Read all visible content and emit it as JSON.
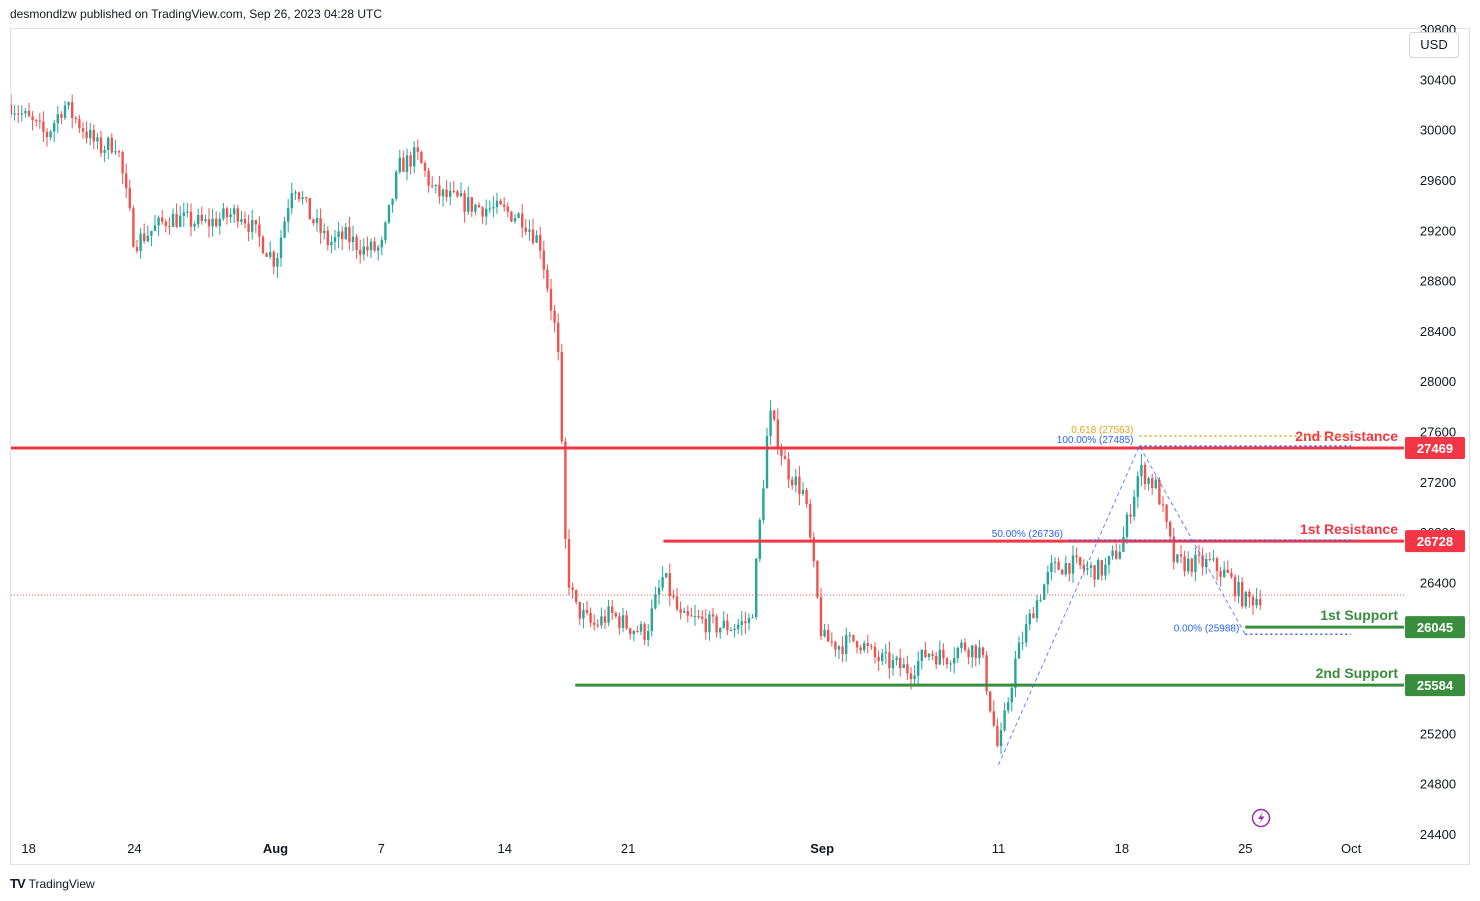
{
  "header": {
    "published": "desmondlzw published on TradingView.com, Sep 26, 2023 04:28 UTC"
  },
  "currency_button": "USD",
  "footer": {
    "brand": "TradingView",
    "logo": "tradingview-logo-icon"
  },
  "colors": {
    "up": "#26a69a",
    "down": "#ef5350",
    "resistance": "#f23645",
    "support": "#388e3c",
    "fib_blue": "#2962ff",
    "fib_gold": "#e6a21c",
    "axis_text": "#131722"
  },
  "chart_data": {
    "type": "candlestick",
    "y_axis_ticks": [
      24400,
      24800,
      25200,
      25600,
      26000,
      26400,
      26800,
      27200,
      27600,
      28000,
      28400,
      28800,
      29200,
      29600,
      30000,
      30400,
      30800
    ],
    "ylim": [
      24400,
      30800
    ],
    "x_axis_ticks": [
      {
        "label": "18",
        "date": "2023-07-18"
      },
      {
        "label": "24",
        "date": "2023-07-24"
      },
      {
        "label": "Aug",
        "date": "2023-08-01"
      },
      {
        "label": "7",
        "date": "2023-08-07"
      },
      {
        "label": "14",
        "date": "2023-08-14"
      },
      {
        "label": "21",
        "date": "2023-08-21"
      },
      {
        "label": "Sep",
        "date": "2023-09-01"
      },
      {
        "label": "11",
        "date": "2023-09-11"
      },
      {
        "label": "18",
        "date": "2023-09-18"
      },
      {
        "label": "25",
        "date": "2023-09-25"
      },
      {
        "label": "Oct",
        "date": "2023-10-01"
      }
    ],
    "xlim": [
      "2023-07-17",
      "2023-10-04"
    ],
    "price_path": [
      {
        "date": "2023-07-17",
        "price": 30200
      },
      {
        "date": "2023-07-19",
        "price": 29950
      },
      {
        "date": "2023-07-20",
        "price": 30200
      },
      {
        "date": "2023-07-22",
        "price": 29850
      },
      {
        "date": "2023-07-23",
        "price": 29900
      },
      {
        "date": "2023-07-24",
        "price": 29100
      },
      {
        "date": "2023-07-26",
        "price": 29300
      },
      {
        "date": "2023-07-28",
        "price": 29250
      },
      {
        "date": "2023-07-30",
        "price": 29350
      },
      {
        "date": "2023-07-31",
        "price": 29150
      },
      {
        "date": "2023-08-01",
        "price": 28950
      },
      {
        "date": "2023-08-02",
        "price": 29600
      },
      {
        "date": "2023-08-03",
        "price": 29300
      },
      {
        "date": "2023-08-04",
        "price": 29100
      },
      {
        "date": "2023-08-05",
        "price": 29150
      },
      {
        "date": "2023-08-06",
        "price": 29050
      },
      {
        "date": "2023-08-07",
        "price": 29050
      },
      {
        "date": "2023-08-08",
        "price": 29700
      },
      {
        "date": "2023-08-09",
        "price": 29800
      },
      {
        "date": "2023-08-10",
        "price": 29500
      },
      {
        "date": "2023-08-12",
        "price": 29400
      },
      {
        "date": "2023-08-14",
        "price": 29350
      },
      {
        "date": "2023-08-15",
        "price": 29300
      },
      {
        "date": "2023-08-16",
        "price": 29100
      },
      {
        "date": "2023-08-17",
        "price": 28300
      },
      {
        "date": "2023-08-17T12:00",
        "price": 26500
      },
      {
        "date": "2023-08-18",
        "price": 26200
      },
      {
        "date": "2023-08-19",
        "price": 26050
      },
      {
        "date": "2023-08-20",
        "price": 26150
      },
      {
        "date": "2023-08-21",
        "price": 26050
      },
      {
        "date": "2023-08-22",
        "price": 26000
      },
      {
        "date": "2023-08-23",
        "price": 26450
      },
      {
        "date": "2023-08-24",
        "price": 26100
      },
      {
        "date": "2023-08-25",
        "price": 26100
      },
      {
        "date": "2023-08-26",
        "price": 26050
      },
      {
        "date": "2023-08-27",
        "price": 26050
      },
      {
        "date": "2023-08-28",
        "price": 26100
      },
      {
        "date": "2023-08-29",
        "price": 27750
      },
      {
        "date": "2023-08-30",
        "price": 27300
      },
      {
        "date": "2023-08-31",
        "price": 27100
      },
      {
        "date": "2023-09-01",
        "price": 25950
      },
      {
        "date": "2023-09-02",
        "price": 25900
      },
      {
        "date": "2023-09-03",
        "price": 25950
      },
      {
        "date": "2023-09-04",
        "price": 25800
      },
      {
        "date": "2023-09-05",
        "price": 25750
      },
      {
        "date": "2023-09-06",
        "price": 25700
      },
      {
        "date": "2023-09-07",
        "price": 25850
      },
      {
        "date": "2023-09-08",
        "price": 25800
      },
      {
        "date": "2023-09-09",
        "price": 25900
      },
      {
        "date": "2023-09-10",
        "price": 25850
      },
      {
        "date": "2023-09-11",
        "price": 25050
      },
      {
        "date": "2023-09-12",
        "price": 25800
      },
      {
        "date": "2023-09-13",
        "price": 26200
      },
      {
        "date": "2023-09-14",
        "price": 26500
      },
      {
        "date": "2023-09-15",
        "price": 26550
      },
      {
        "date": "2023-09-16",
        "price": 26500
      },
      {
        "date": "2023-09-17",
        "price": 26500
      },
      {
        "date": "2023-09-18",
        "price": 26700
      },
      {
        "date": "2023-09-19",
        "price": 27300
      },
      {
        "date": "2023-09-20",
        "price": 27150
      },
      {
        "date": "2023-09-21",
        "price": 26550
      },
      {
        "date": "2023-09-22",
        "price": 26550
      },
      {
        "date": "2023-09-23",
        "price": 26550
      },
      {
        "date": "2023-09-24",
        "price": 26450
      },
      {
        "date": "2023-09-25",
        "price": 26250
      },
      {
        "date": "2023-09-26",
        "price": 26300
      }
    ],
    "current_price": 26300,
    "levels": [
      {
        "name": "2nd Resistance",
        "value": 27469,
        "tag": "27469",
        "kind": "resistance",
        "from": "2023-07-17",
        "to": "2023-10-04"
      },
      {
        "name": "1st Resistance",
        "value": 26728,
        "tag": "26728",
        "kind": "resistance",
        "from": "2023-08-23",
        "to": "2023-10-04"
      },
      {
        "name": "1st Support",
        "value": 26045,
        "tag": "26045",
        "kind": "support",
        "from": "2023-09-25",
        "to": "2023-10-04"
      },
      {
        "name": "2nd Support",
        "value": 25584,
        "tag": "25584",
        "kind": "support",
        "from": "2023-08-18",
        "to": "2023-10-04"
      }
    ],
    "fib_levels": [
      {
        "label": "0.618 (27563)",
        "value": 27563,
        "color": "gold",
        "from": "2023-09-19",
        "to": "2023-10-01"
      },
      {
        "label": "100.00% (27485)",
        "value": 27485,
        "color": "blue",
        "from": "2023-09-19",
        "to": "2023-10-01"
      },
      {
        "label": "50.00% (26736)",
        "value": 26736,
        "color": "blue",
        "from": "2023-09-15",
        "to": "2023-10-01"
      },
      {
        "label": "0.00% (25988)",
        "value": 25988,
        "color": "blue",
        "from": "2023-09-25",
        "to": "2023-10-01"
      }
    ],
    "fib_swing": [
      {
        "date": "2023-09-11",
        "price": 24950
      },
      {
        "date": "2023-09-19",
        "price": 27485
      },
      {
        "date": "2023-09-25",
        "price": 25988
      }
    ]
  }
}
